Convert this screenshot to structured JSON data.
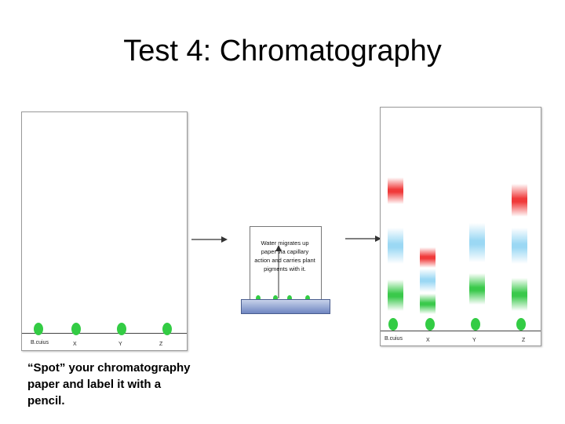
{
  "title": "Test 4: Chromatography",
  "left_panel": {
    "labels": [
      "B.cuius",
      "X",
      "Y",
      "Z"
    ]
  },
  "caption": "“Spot” your chromatography paper and label it with a pencil.",
  "middle_panel": {
    "text": "Water migrates up paper via capillary action and carries plant pigments with it."
  },
  "right_panel": {
    "labels": [
      "B.cuius",
      "X",
      "Y",
      "Z"
    ]
  },
  "colors": {
    "spot": "#33cc44",
    "red_band": "#f03a3a",
    "blue_band": "#9bd8f4",
    "green_band": "#3ac94b",
    "tray": "#6f86c1"
  }
}
